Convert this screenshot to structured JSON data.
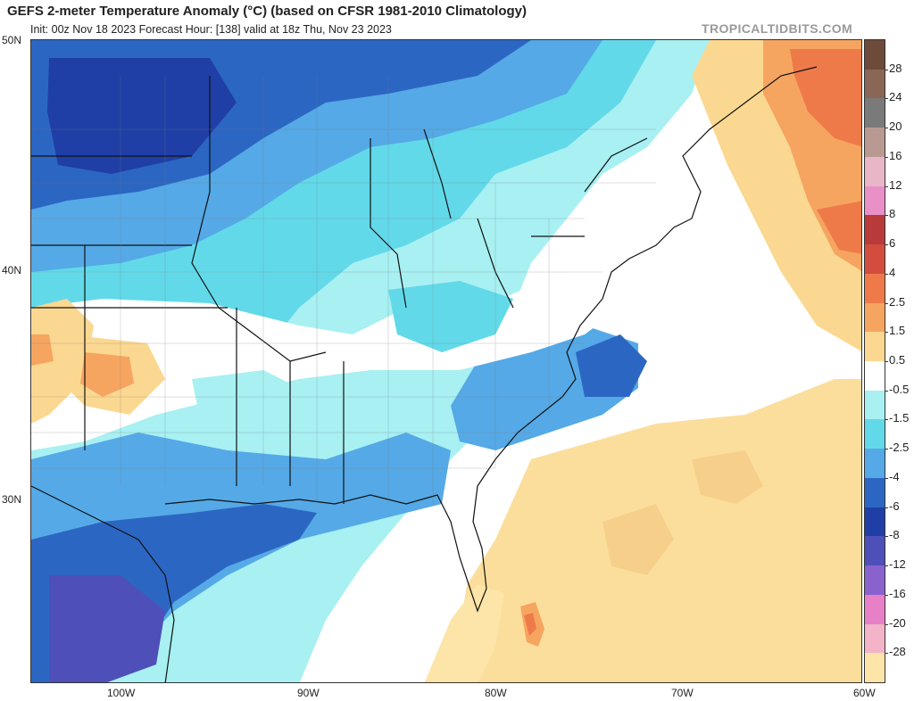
{
  "header": {
    "title": "GEFS 2-meter Temperature Anomaly (°C) (based on CFSR 1981-2010 Climatology)",
    "subtitle": "Init: 00z Nov 18 2023   Forecast Hour: [138]   valid at 18z Thu, Nov 23 2023",
    "brand": "TROPICALTIDBITS.COM"
  },
  "axes": {
    "lat_labels": [
      "50N",
      "40N",
      "30N"
    ],
    "lon_labels": [
      "100W",
      "90W",
      "80W",
      "70W",
      "60W"
    ]
  },
  "colorbar": {
    "labels": [
      "28",
      "24",
      "20",
      "16",
      "12",
      "8",
      "6",
      "4",
      "2.5",
      "1.5",
      "0.5",
      "-0.5",
      "-1.5",
      "-2.5",
      "-4",
      "-6",
      "-8",
      "-12",
      "-16",
      "-20",
      "-28"
    ],
    "colors": [
      "#6e4a3a",
      "#8a6656",
      "#7a7a7a",
      "#b99a92",
      "#e7b7c8",
      "#ea90c9",
      "#b83a3a",
      "#d24d3e",
      "#ee7a4a",
      "#f6a560",
      "#fbd891",
      "#ffffff",
      "#a8f0f2",
      "#62d9e9",
      "#55a9e6",
      "#2c66c3",
      "#1f3fa6",
      "#4e4fb9",
      "#8a62cd",
      "#e880c8",
      "#f3b3c8",
      "#fde4a8"
    ]
  }
}
